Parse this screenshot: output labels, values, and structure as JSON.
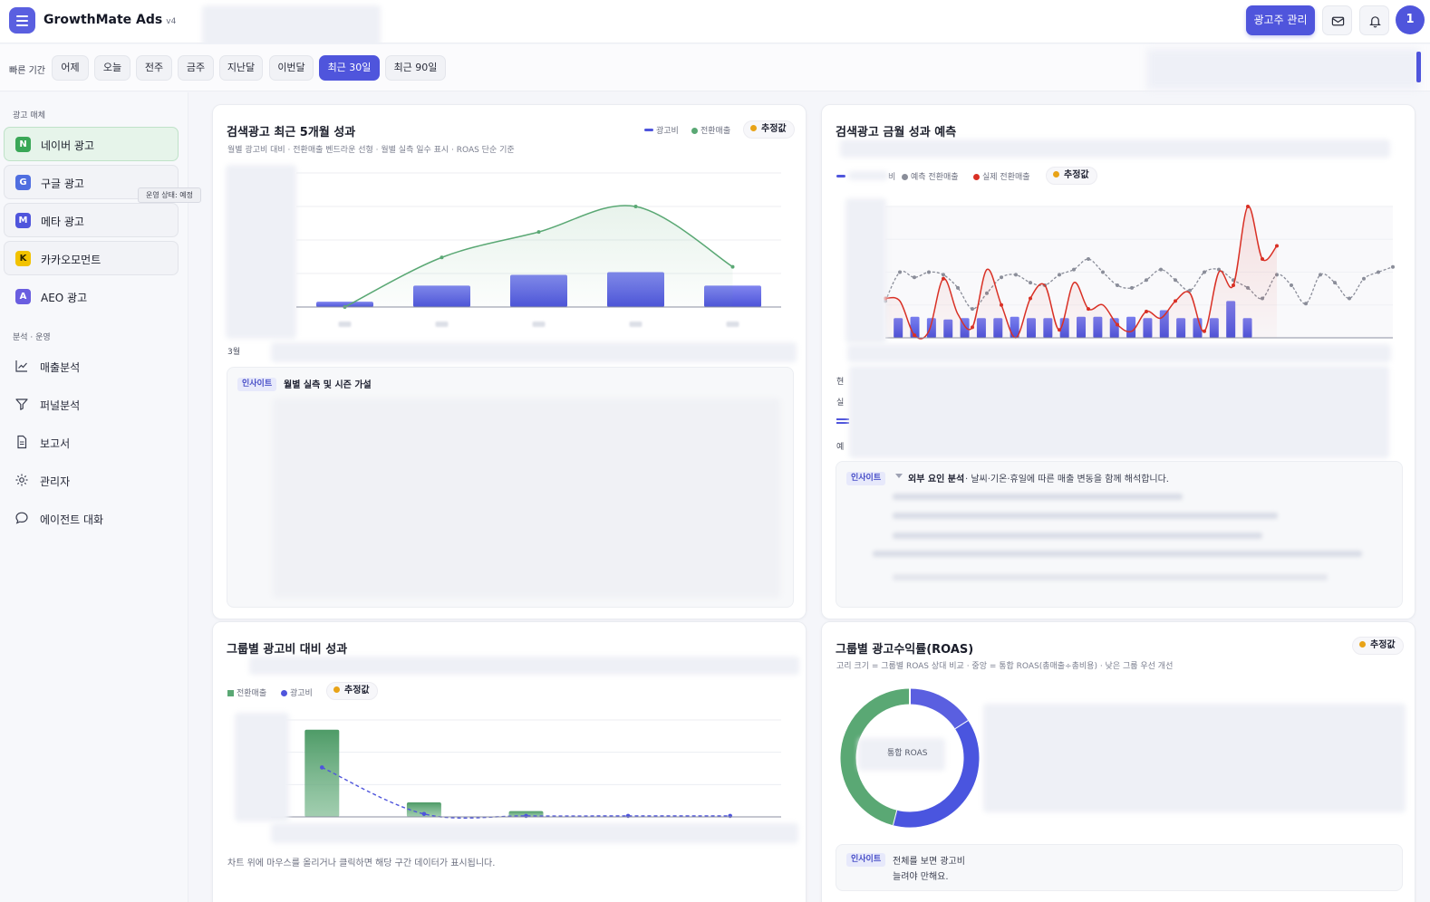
{
  "app": {
    "title": "GrowthMate Ads",
    "version": "v4"
  },
  "header": {
    "advertiser_button": "광고주 관리",
    "avatar_label": "1"
  },
  "quick_range": {
    "label": "빠른 기간",
    "options": [
      "어제",
      "오늘",
      "전주",
      "금주",
      "지난달",
      "이번달",
      "최근 30일",
      "최근 90일"
    ],
    "active": "최근 30일"
  },
  "sidebar": {
    "media_title": "광고 매체",
    "media": [
      {
        "badge": "N",
        "label": "네이버 광고",
        "color": "#3aa757",
        "active": true
      },
      {
        "badge": "G",
        "label": "구글 광고",
        "color": "#4f6ee0",
        "active": false
      },
      {
        "badge": "M",
        "label": "메타 광고",
        "color": "#4f55dc",
        "active": false
      },
      {
        "badge": "K",
        "label": "카카오모먼트",
        "color": "#f2c200",
        "badge_text_color": "#2a2200",
        "active": false
      },
      {
        "badge": "A",
        "label": "AEO 광고",
        "color": "#6a5ee0",
        "active": false
      }
    ],
    "tooltip": "운영 상태: 예정",
    "ops_title": "분석 · 운영",
    "nav": [
      {
        "label": "매출분석",
        "icon": "line-chart-icon"
      },
      {
        "label": "퍼널분석",
        "icon": "funnel-icon"
      },
      {
        "label": "보고서",
        "icon": "document-icon"
      },
      {
        "label": "관리자",
        "icon": "gear-icon"
      },
      {
        "label": "에이전트 대화",
        "icon": "chat-bubble-icon"
      }
    ]
  },
  "colors": {
    "accent": "#4f55dc",
    "green": "#5aa874",
    "red": "#d93025",
    "gray_line": "#8a8d99",
    "estimate": "#e8a317"
  },
  "cards": {
    "monthly": {
      "title": "검색광고 최근 5개월 성과",
      "subtitle": "월별 광고비 대비 · 전환매출 벤드라운 선형 · 월별 실측 일수 표시 · ROAS 단순 기준",
      "legend": [
        "광고비",
        "전환매출"
      ],
      "estimate_label": "추정값",
      "x_caption": "3월",
      "insight_tag": "인사이트",
      "insight_title": "월별 실측 및 시즌 가설"
    },
    "forecast": {
      "title": "검색광고 금월 성과 예측",
      "legend_suffix": "비",
      "legend": [
        "예측 전환매출",
        "실제 전환매출"
      ],
      "estimate_label": "추정값",
      "side_labels": [
        "현",
        "실",
        "예"
      ],
      "insight_tag": "인사이트",
      "insight_title": "외부 요인 분석",
      "insight_text": "· 날씨·기온·휴일에 따른 매출 변동을 함께 해석합니다."
    },
    "group": {
      "title": "그룹별 광고비 대비 성과",
      "legend": [
        "전환매출",
        "광고비"
      ],
      "estimate_label": "추정값",
      "hint": "차트 위에 마우스를 올리거나 클릭하면 해당 구간 데이터가 표시됩니다."
    },
    "roas": {
      "title": "그룹별 광고수익률(ROAS)",
      "subtitle": "고리 크기 = 그룹별 ROAS 상대 비교 · 중앙 = 통합 ROAS(총매출÷총비용) · 낮은 그룹 우선 개선",
      "estimate_label": "추정값",
      "center_label": "통합 ROAS",
      "insight_tag": "인사이트",
      "insight_line1": "전체를 보면 광고비",
      "insight_line2": "늘려야 만해요."
    }
  },
  "chart_data": [
    {
      "type": "bar",
      "title": "검색광고 최근 5개월 성과",
      "series": [
        {
          "name": "광고비",
          "type": "bar",
          "values": [
            4,
            16,
            24,
            26,
            16
          ]
        },
        {
          "name": "전환매출",
          "type": "line",
          "values": [
            0,
            37,
            56,
            75,
            30
          ]
        }
      ],
      "ylim": [
        0,
        100
      ],
      "grid": true
    },
    {
      "type": "bar",
      "title": "검색광고 금월 성과 예측",
      "series": [
        {
          "name": "예측 전환매출",
          "type": "line",
          "values": [
            28,
            50,
            46,
            50,
            48,
            38,
            22,
            34,
            46,
            48,
            42,
            40,
            48,
            52,
            60,
            50,
            40,
            38,
            44,
            52,
            44,
            36,
            50,
            52,
            44,
            38,
            30,
            48,
            40,
            26,
            48,
            42,
            30,
            45,
            50,
            54
          ]
        },
        {
          "name": "실제 전환매출",
          "type": "line",
          "values": [
            30,
            28,
            2,
            5,
            45,
            18,
            8,
            52,
            25,
            0,
            30,
            40,
            6,
            42,
            22,
            25,
            10,
            5,
            20,
            15,
            28,
            34,
            5,
            50,
            40,
            100,
            60,
            70
          ]
        },
        {
          "name": "광고비",
          "type": "bar",
          "values": [
            15,
            16,
            15,
            14,
            15,
            15,
            15,
            16,
            15,
            15,
            15,
            16,
            16,
            15,
            16,
            15,
            21,
            15,
            15,
            15,
            28,
            15
          ]
        }
      ],
      "ylim": [
        0,
        100
      ],
      "grid": true
    },
    {
      "type": "bar",
      "title": "그룹별 광고비 대비 성과",
      "series": [
        {
          "name": "전환매출",
          "type": "bar",
          "values": [
            90,
            15,
            6,
            0,
            0
          ]
        },
        {
          "name": "광고비",
          "type": "line",
          "values": [
            51,
            3,
            1,
            1,
            1
          ]
        }
      ],
      "ylim": [
        0,
        100
      ],
      "grid": true
    },
    {
      "type": "pie",
      "title": "그룹별 광고수익률(ROAS)",
      "series": [
        {
          "name": "그룹",
          "values": [
            16,
            38,
            46
          ]
        }
      ],
      "colors": [
        "#5a5fe0",
        "#4a55df",
        "#5aa874"
      ]
    }
  ]
}
